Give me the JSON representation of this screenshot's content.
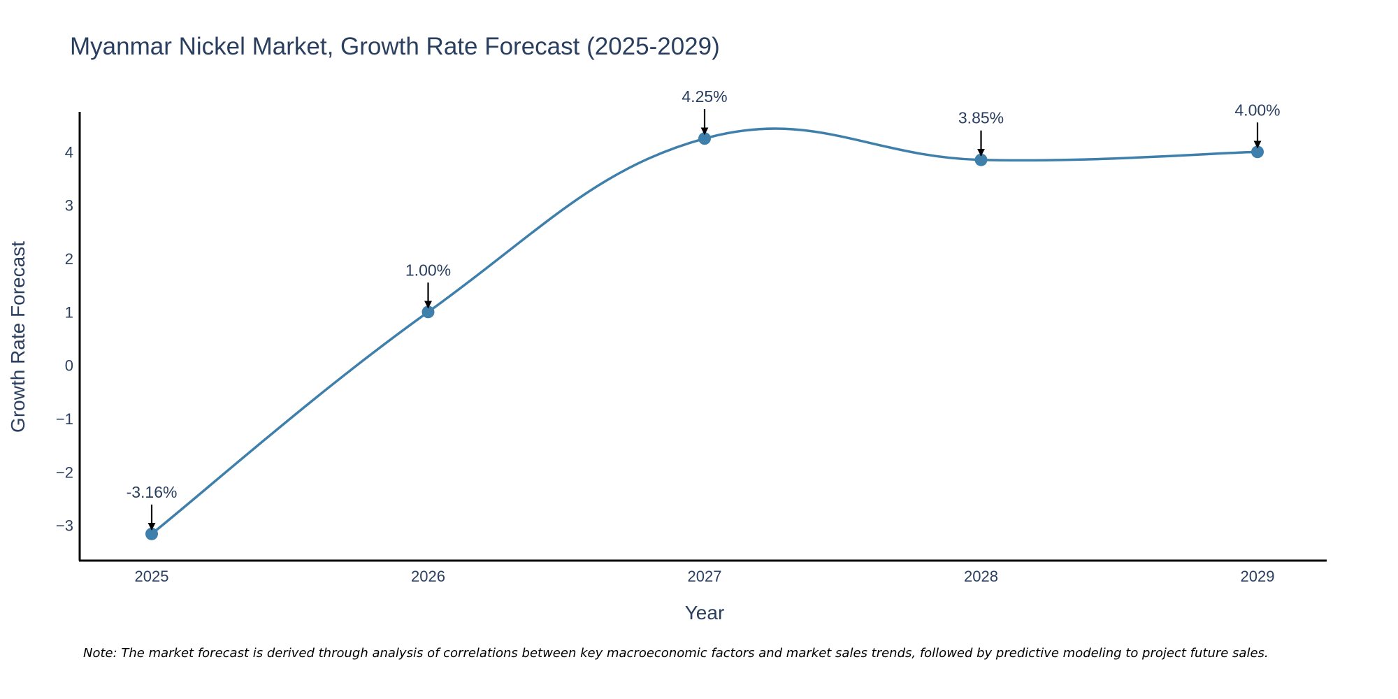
{
  "colors": {
    "line": "#3e7fab",
    "marker": "#3e7fab",
    "axis": "#000000",
    "text": "#2a3f5f",
    "arrow": "#000000"
  },
  "chart_data": {
    "type": "line",
    "title": "Myanmar Nickel Market, Growth Rate Forecast (2025-2029)",
    "xlabel": "Year",
    "ylabel": "Growth Rate Forecast",
    "categories": [
      "2025",
      "2026",
      "2027",
      "2028",
      "2029"
    ],
    "series": [
      {
        "name": "Growth Rate Forecast",
        "values": [
          -3.16,
          1.0,
          4.25,
          3.85,
          4.0
        ],
        "labels": [
          "-3.16%",
          "1.00%",
          "4.25%",
          "3.85%",
          "4.00%"
        ]
      }
    ],
    "ylim": [
      -3.66,
      4.75
    ],
    "yticks": [
      -3,
      -2,
      -1,
      0,
      1,
      2,
      3,
      4
    ],
    "ytick_labels": [
      "−3",
      "−2",
      "−1",
      "0",
      "1",
      "2",
      "3",
      "4"
    ],
    "grid": false,
    "line_shape": "spline"
  },
  "note": "Note: The market forecast is derived through analysis of correlations between key macroeconomic factors and market sales trends, followed by predictive modeling to project future sales."
}
